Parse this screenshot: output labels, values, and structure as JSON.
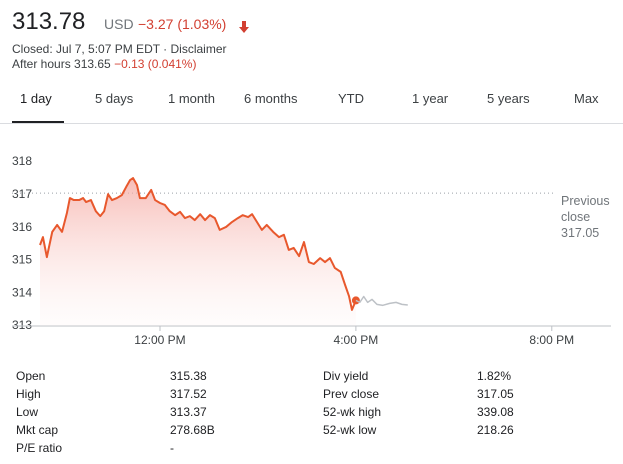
{
  "header": {
    "price": "313.78",
    "currency": "USD",
    "change": "−3.27 (1.03%)",
    "status": "Closed: Jul 7, 5:07 PM EDT · Disclaimer",
    "after_hours_label": "After hours 313.65",
    "after_hours_change": "−0.13 (0.041%)"
  },
  "tabs": [
    "1 day",
    "5 days",
    "1 month",
    "6 months",
    "YTD",
    "1 year",
    "5 years",
    "Max"
  ],
  "chart_data": {
    "type": "line",
    "xlim": [
      9.55,
      21.25
    ],
    "xticks": [
      {
        "value": 12,
        "label": "12:00 PM"
      },
      {
        "value": 16,
        "label": "4:00 PM"
      },
      {
        "value": 20,
        "label": "8:00 PM"
      }
    ],
    "ylim": [
      313,
      318
    ],
    "yticks": [
      313,
      314,
      315,
      316,
      317,
      318
    ],
    "reference_line": {
      "label": "Previous close",
      "value": 317.05
    },
    "series": [
      {
        "color": "#e8582d",
        "area": true,
        "x": [
          9.55,
          9.61,
          9.69,
          9.8,
          9.9,
          10,
          10.1,
          10.16,
          10.24,
          10.35,
          10.43,
          10.49,
          10.59,
          10.69,
          10.78,
          10.86,
          10.94,
          11.02,
          11.12,
          11.22,
          11.31,
          11.39,
          11.45,
          11.53,
          11.59,
          11.71,
          11.82,
          11.9,
          12,
          12.1,
          12.2,
          12.31,
          12.41,
          12.51,
          12.61,
          12.71,
          12.82,
          12.92,
          13.02,
          13.12,
          13.22,
          13.35,
          13.47,
          13.59,
          13.69,
          13.8,
          13.88,
          13.98,
          14.08,
          14.18,
          14.31,
          14.43,
          14.53,
          14.63,
          14.73,
          14.84,
          14.94,
          15.04,
          15.14,
          15.27,
          15.37,
          15.47,
          15.57,
          15.69,
          15.78,
          15.86,
          15.92,
          16
        ],
        "values": [
          315.47,
          315.71,
          315.1,
          315.87,
          316.08,
          315.87,
          316.45,
          316.9,
          316.84,
          316.84,
          316.9,
          316.78,
          316.84,
          316.5,
          316.35,
          316.5,
          317.02,
          316.84,
          316.9,
          316.99,
          317.24,
          317.45,
          317.51,
          317.3,
          316.9,
          316.9,
          317.15,
          316.84,
          316.75,
          316.69,
          316.5,
          316.38,
          316.48,
          316.29,
          316.35,
          316.23,
          316.41,
          316.23,
          316.38,
          316.29,
          315.93,
          316.02,
          316.17,
          316.29,
          316.38,
          316.32,
          316.41,
          316.17,
          315.93,
          316.08,
          315.87,
          315.71,
          315.78,
          315.32,
          315.38,
          315.13,
          315.56,
          314.95,
          314.89,
          315.07,
          314.95,
          315.07,
          314.77,
          314.65,
          314.25,
          313.91,
          313.49,
          313.78
        ]
      },
      {
        "color": "#bdc1c6",
        "area": false,
        "x": [
          16,
          16.08,
          16.16,
          16.24,
          16.33,
          16.43,
          16.55,
          16.69,
          16.82,
          16.94,
          17.06
        ],
        "values": [
          313.78,
          313.72,
          313.9,
          313.72,
          313.81,
          313.66,
          313.63,
          313.69,
          313.72,
          313.66,
          313.64
        ]
      }
    ]
  },
  "stats": {
    "rows": [
      [
        "Open",
        "315.38",
        "Div yield",
        "1.82%"
      ],
      [
        "High",
        "317.52",
        "Prev close",
        "317.05"
      ],
      [
        "Low",
        "313.37",
        "52-wk high",
        "339.08"
      ],
      [
        "Mkt cap",
        "278.68B",
        "52-wk low",
        "218.26"
      ],
      [
        "P/E ratio",
        "-"
      ]
    ]
  }
}
